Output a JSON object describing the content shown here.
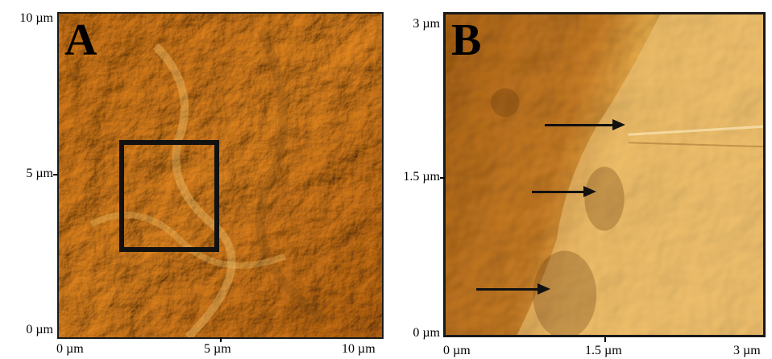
{
  "panel_a": {
    "label": "A",
    "y_ticks": [
      "10 µm",
      "5 µm",
      "0 µm"
    ],
    "x_ticks": [
      "0 µm",
      "5 µm",
      "10 µm"
    ]
  },
  "panel_b": {
    "label": "B",
    "y_ticks": [
      "3 µm",
      "1.5 µm",
      "0 µm"
    ],
    "x_ticks": [
      "0 µm",
      "1.5 µm",
      "3 µm"
    ]
  }
}
